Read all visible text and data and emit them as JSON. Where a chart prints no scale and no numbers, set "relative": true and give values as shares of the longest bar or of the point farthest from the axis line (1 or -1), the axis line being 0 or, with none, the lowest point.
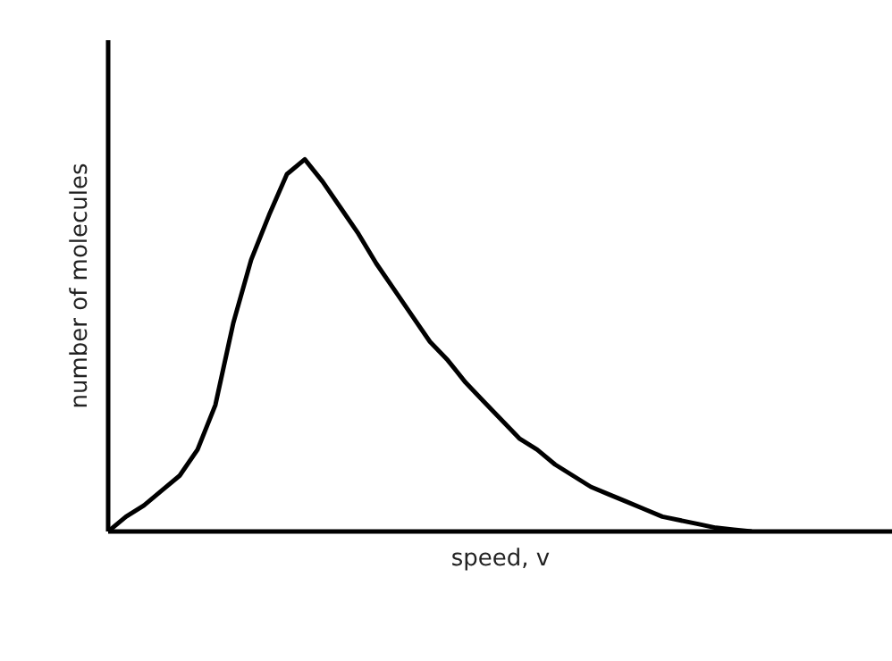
{
  "chart_data": {
    "type": "line",
    "relative": true,
    "xlabel": "speed, v",
    "ylabel": "number of molecules",
    "grid": false,
    "marker": "none",
    "line_style": "solid",
    "categories": [
      null,
      null,
      null,
      null,
      null,
      null,
      null,
      null,
      null,
      null,
      null,
      null,
      null,
      null,
      null,
      null,
      null,
      null,
      null,
      null,
      null,
      null,
      null,
      null,
      null,
      null,
      null,
      null,
      null,
      null,
      null,
      null,
      null,
      null,
      null,
      null,
      null,
      null,
      null,
      null,
      null,
      null,
      null,
      null
    ],
    "series": [
      {
        "color": "#000000",
        "values": [
          0,
          0.04,
          0.07,
          0.11,
          0.15,
          0.22,
          0.34,
          0.56,
          0.73,
          0.85,
          0.96,
          1.0,
          0.94,
          0.87,
          0.8,
          0.72,
          0.65,
          0.58,
          0.51,
          0.46,
          0.4,
          0.35,
          0.3,
          0.25,
          0.22,
          0.18,
          0.15,
          0.12,
          0.1,
          0.08,
          0.06,
          0.04,
          0.03,
          0.02,
          0.01,
          0.005,
          0,
          null,
          null,
          null,
          null,
          null,
          null,
          null
        ]
      }
    ]
  }
}
